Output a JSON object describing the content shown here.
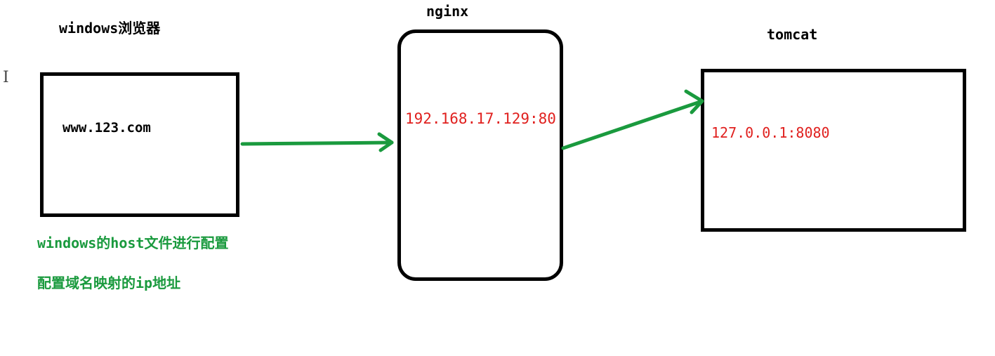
{
  "colors": {
    "box_border": "#000000",
    "arrow": "#1a9a3e",
    "ip_text": "#e0201e",
    "note_text": "#1a9a3e",
    "label_text": "#000000"
  },
  "browser": {
    "title": "windows浏览器",
    "content": "www.123.com"
  },
  "nginx": {
    "title": "nginx",
    "address": "192.168.17.129:80"
  },
  "tomcat": {
    "title": "tomcat",
    "address": "127.0.0.1:8080"
  },
  "notes": [
    "windows的host文件进行配置",
    "配置域名映射的ip地址"
  ],
  "cursor_icon": "text-cursor-icon"
}
